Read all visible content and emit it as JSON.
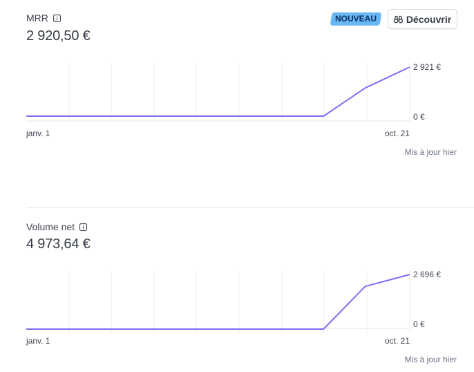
{
  "badge_label": "NOUVEAU",
  "discover_button": {
    "label": "Découvrir",
    "icon": "binoculars-icon"
  },
  "colors": {
    "line": "#7b6ef6",
    "grid": "#ebeef1",
    "baseline": "#e3e5ea",
    "badge": "#69b7f5"
  },
  "cards": [
    {
      "title": "MRR",
      "value": "2 920,50 €",
      "updated": "Mis à jour hier",
      "chart_data": {
        "type": "line",
        "x_start_label": "janv. 1",
        "x_end_label": "oct. 21",
        "y_top_label": "2 921 €",
        "y_bottom_label": "0 €",
        "ylim": [
          0,
          2921
        ],
        "series": [
          {
            "points": [
              [
                0,
                0
              ],
              [
                0.775,
                0
              ],
              [
                0.884,
                1680
              ],
              [
                1,
                2921
              ]
            ]
          }
        ]
      }
    },
    {
      "title": "Volume net",
      "value": "4 973,64 €",
      "updated": "Mis à jour hier",
      "chart_data": {
        "type": "line",
        "x_start_label": "janv. 1",
        "x_end_label": "oct. 21",
        "y_top_label": "2 696 €",
        "y_bottom_label": "0 €",
        "ylim": [
          0,
          2696
        ],
        "series": [
          {
            "points": [
              [
                0,
                0
              ],
              [
                0.775,
                0
              ],
              [
                0.884,
                2110
              ],
              [
                1,
                2696
              ]
            ]
          }
        ]
      }
    }
  ]
}
